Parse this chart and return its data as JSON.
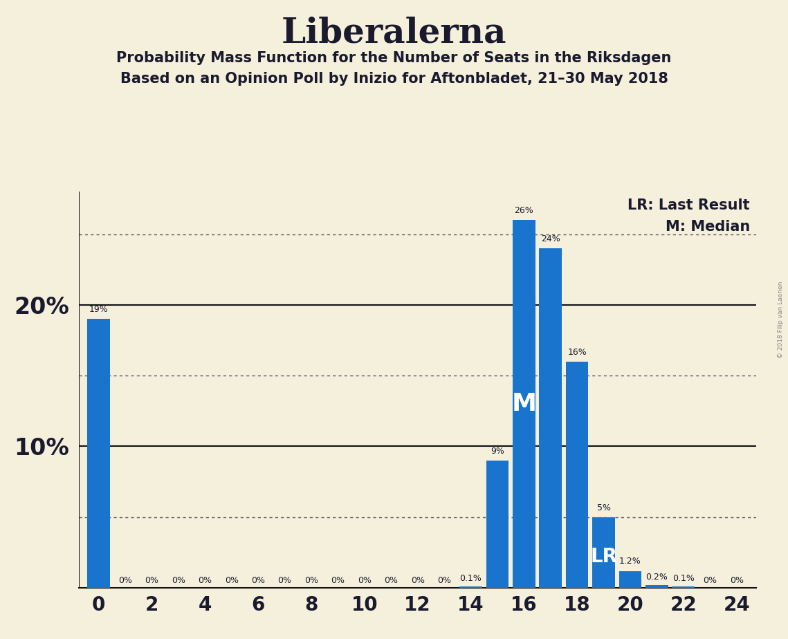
{
  "title": "Liberalerna",
  "subtitle1": "Probability Mass Function for the Number of Seats in the Riksdagen",
  "subtitle2": "Based on an Opinion Poll by Inizio for Aftonbladet, 21–30 May 2018",
  "copyright": "© 2018 Filip van Laenen",
  "background_color": "#f5f0dc",
  "bar_color": "#1874CD",
  "y_max": 28,
  "seats": [
    0,
    1,
    2,
    3,
    4,
    5,
    6,
    7,
    8,
    9,
    10,
    11,
    12,
    13,
    14,
    15,
    16,
    17,
    18,
    19,
    20,
    21,
    22,
    23,
    24
  ],
  "probabilities": [
    19.0,
    0.0,
    0.0,
    0.0,
    0.0,
    0.0,
    0.0,
    0.0,
    0.0,
    0.0,
    0.0,
    0.0,
    0.0,
    0.0,
    0.1,
    9.0,
    26.0,
    24.0,
    16.0,
    5.0,
    1.2,
    0.2,
    0.1,
    0.0,
    0.0
  ],
  "labels": [
    "19%",
    "0%",
    "0%",
    "0%",
    "0%",
    "0%",
    "0%",
    "0%",
    "0%",
    "0%",
    "0%",
    "0%",
    "0%",
    "0%",
    "0.1%",
    "9%",
    "26%",
    "24%",
    "16%",
    "5%",
    "1.2%",
    "0.2%",
    "0.1%",
    "0%",
    "0%"
  ],
  "median_seat": 16,
  "lr_seat": 19,
  "dotted_lines": [
    5.0,
    15.0,
    25.0
  ],
  "solid_lines": [
    10.0,
    20.0
  ],
  "legend_lr": "LR: Last Result",
  "legend_m": "M: Median",
  "x_ticks": [
    0,
    2,
    4,
    6,
    8,
    10,
    12,
    14,
    16,
    18,
    20,
    22,
    24
  ],
  "ytick_values": [
    10,
    20
  ],
  "ytick_labels": [
    "10%",
    "20%"
  ]
}
